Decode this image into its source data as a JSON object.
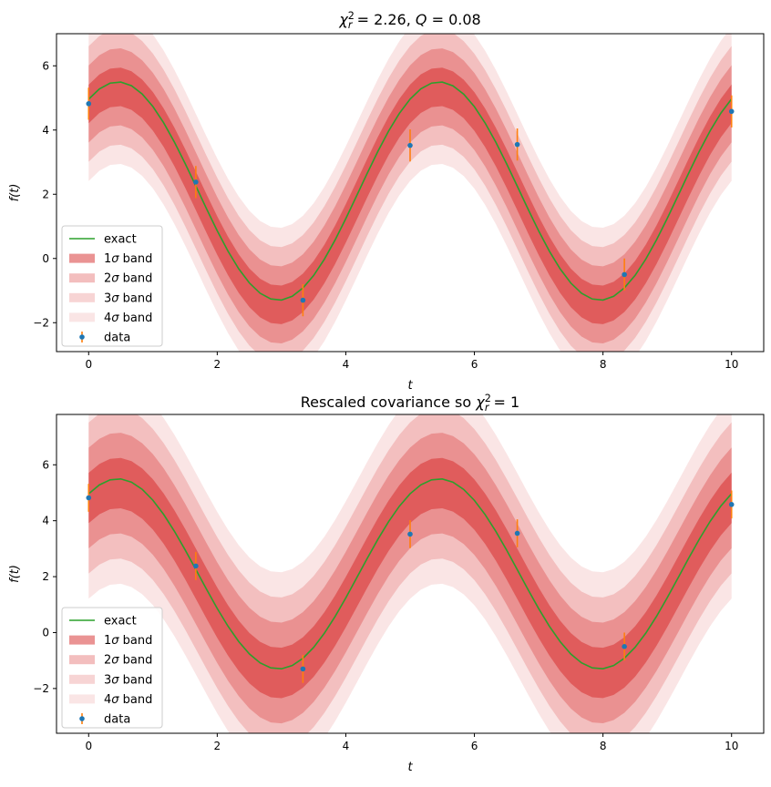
{
  "chart_data": [
    {
      "type": "line",
      "title_parts": [
        {
          "t": "χ",
          "italic": true
        },
        {
          "t": "2",
          "sup": true
        },
        {
          "t": "r",
          "sub": true,
          "italic": true
        },
        {
          "t": " = 2.26, "
        },
        {
          "t": "Q",
          "italic": true
        },
        {
          "t": " = 0.08"
        }
      ],
      "xlabel": "t",
      "ylabel": "f(t)",
      "xlim": [
        -0.5,
        10.5
      ],
      "ylim": [
        -2.9,
        7.0
      ],
      "xticks": [
        0,
        2,
        4,
        6,
        8,
        10
      ],
      "yticks": [
        -2,
        0,
        2,
        4,
        6
      ],
      "band_sigma": [
        0.6,
        1.2,
        1.8,
        2.4
      ],
      "exact": {
        "amplitude": 3.4,
        "frequency": 1.257,
        "phase": 1.0,
        "offset": 2.1
      },
      "fit_offset": -0.15,
      "data_points": [
        {
          "x": 0.0,
          "y": 4.82,
          "yerr": 0.5
        },
        {
          "x": 1.667,
          "y": 2.38,
          "yerr": 0.5
        },
        {
          "x": 3.333,
          "y": -1.3,
          "yerr": 0.5
        },
        {
          "x": 5.0,
          "y": 3.52,
          "yerr": 0.5
        },
        {
          "x": 6.667,
          "y": 3.55,
          "yerr": 0.5
        },
        {
          "x": 8.333,
          "y": -0.5,
          "yerr": 0.5
        },
        {
          "x": 10.0,
          "y": 4.58,
          "yerr": 0.5
        }
      ],
      "legend": {
        "placement": "lower-left",
        "items": [
          {
            "kind": "line",
            "label_parts": [
              {
                "t": "exact"
              }
            ]
          },
          {
            "kind": "band",
            "level": 1,
            "label_parts": [
              {
                "t": "1"
              },
              {
                "t": "σ",
                "italic": true
              },
              {
                "t": " band"
              }
            ]
          },
          {
            "kind": "band",
            "level": 2,
            "label_parts": [
              {
                "t": "2"
              },
              {
                "t": "σ",
                "italic": true
              },
              {
                "t": " band"
              }
            ]
          },
          {
            "kind": "band",
            "level": 3,
            "label_parts": [
              {
                "t": "3"
              },
              {
                "t": "σ",
                "italic": true
              },
              {
                "t": " band"
              }
            ]
          },
          {
            "kind": "band",
            "level": 4,
            "label_parts": [
              {
                "t": "4"
              },
              {
                "t": "σ",
                "italic": true
              },
              {
                "t": " band"
              }
            ]
          },
          {
            "kind": "errorbar",
            "label_parts": [
              {
                "t": "data"
              }
            ]
          }
        ]
      }
    },
    {
      "type": "line",
      "title_parts": [
        {
          "t": "Rescaled covariance so "
        },
        {
          "t": "χ",
          "italic": true
        },
        {
          "t": "2",
          "sup": true
        },
        {
          "t": "r",
          "sub": true,
          "italic": true
        },
        {
          "t": " = 1"
        }
      ],
      "xlabel": "t",
      "ylabel": "f(t)",
      "xlim": [
        -0.5,
        10.5
      ],
      "ylim": [
        -3.6,
        7.8
      ],
      "xticks": [
        0,
        2,
        4,
        6,
        8,
        10
      ],
      "yticks": [
        -2,
        0,
        2,
        4,
        6
      ],
      "band_sigma": [
        0.9,
        1.8,
        2.7,
        3.6
      ],
      "exact": {
        "amplitude": 3.4,
        "frequency": 1.257,
        "phase": 1.0,
        "offset": 2.1
      },
      "fit_offset": -0.15,
      "data_points": [
        {
          "x": 0.0,
          "y": 4.82,
          "yerr": 0.5
        },
        {
          "x": 1.667,
          "y": 2.38,
          "yerr": 0.5
        },
        {
          "x": 3.333,
          "y": -1.3,
          "yerr": 0.5
        },
        {
          "x": 5.0,
          "y": 3.52,
          "yerr": 0.5
        },
        {
          "x": 6.667,
          "y": 3.55,
          "yerr": 0.5
        },
        {
          "x": 8.333,
          "y": -0.5,
          "yerr": 0.5
        },
        {
          "x": 10.0,
          "y": 4.58,
          "yerr": 0.5
        }
      ],
      "legend": {
        "placement": "lower-left",
        "items": [
          {
            "kind": "line",
            "label_parts": [
              {
                "t": "exact"
              }
            ]
          },
          {
            "kind": "band",
            "level": 1,
            "label_parts": [
              {
                "t": "1"
              },
              {
                "t": "σ",
                "italic": true
              },
              {
                "t": " band"
              }
            ]
          },
          {
            "kind": "band",
            "level": 2,
            "label_parts": [
              {
                "t": "2"
              },
              {
                "t": "σ",
                "italic": true
              },
              {
                "t": " band"
              }
            ]
          },
          {
            "kind": "band",
            "level": 3,
            "label_parts": [
              {
                "t": "3"
              },
              {
                "t": "σ",
                "italic": true
              },
              {
                "t": " band"
              }
            ]
          },
          {
            "kind": "band",
            "level": 4,
            "label_parts": [
              {
                "t": "4"
              },
              {
                "t": "σ",
                "italic": true
              },
              {
                "t": " band"
              }
            ]
          },
          {
            "kind": "errorbar",
            "label_parts": [
              {
                "t": "data"
              }
            ]
          }
        ]
      }
    }
  ],
  "colors": {
    "exact_line": "#2ca02c",
    "band": "#d62728",
    "band_opacity": [
      0.5,
      0.3,
      0.2,
      0.12
    ],
    "data_point": "#1f77b4",
    "error_bar": "#ff7f0e",
    "axis": "#000000",
    "legend_border": "#cccccc"
  }
}
